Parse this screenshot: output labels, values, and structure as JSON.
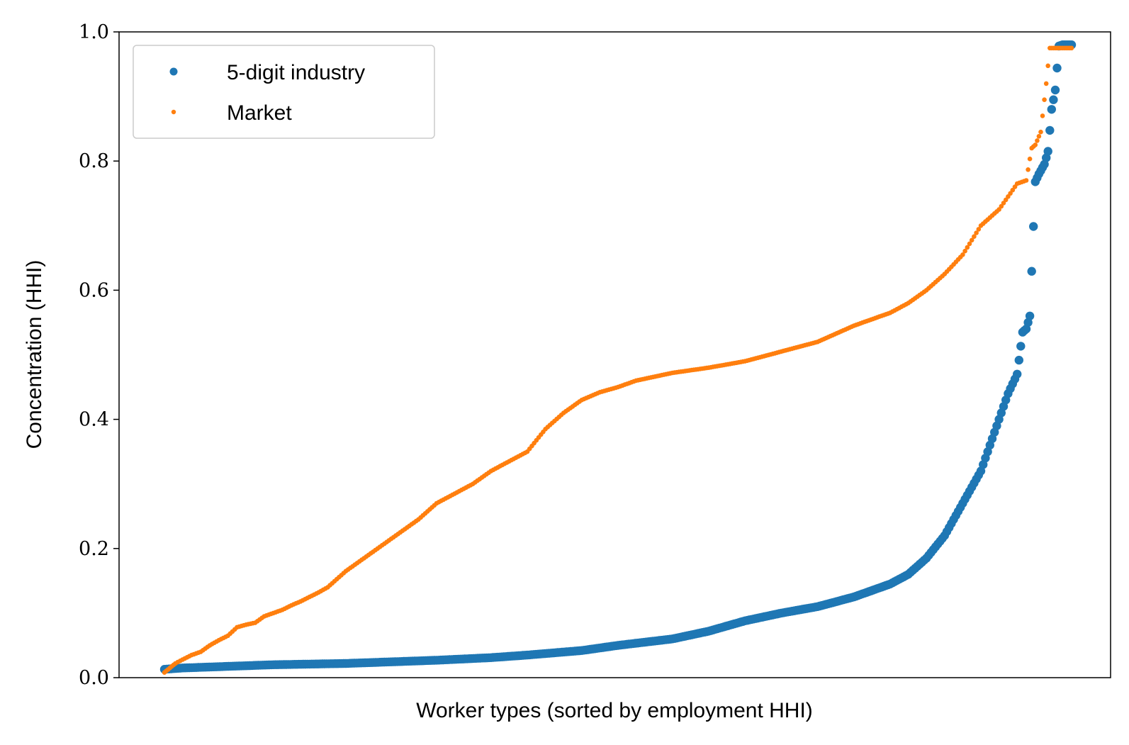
{
  "chart_data": {
    "type": "scatter",
    "xlabel": "Worker types (sorted by employment HHI)",
    "ylabel": "Concentration (HHI)",
    "ylim": [
      0,
      1
    ],
    "yticks": [
      "0.0",
      "0.2",
      "0.4",
      "0.6",
      "0.8",
      "1.0"
    ],
    "xticks_shown": false,
    "legend_position": "top-left",
    "x_range": [
      0,
      500
    ],
    "series": [
      {
        "name": "5-digit industry",
        "color": "#1f77b4",
        "marker": "large-dot",
        "x": [
          0,
          10,
          20,
          40,
          60,
          80,
          100,
          120,
          150,
          180,
          200,
          230,
          250,
          280,
          300,
          320,
          340,
          360,
          380,
          400,
          410,
          420,
          430,
          440,
          450,
          455,
          460,
          465,
          470,
          473,
          475,
          477,
          480,
          482,
          485,
          487,
          489,
          491,
          493,
          495,
          497,
          499,
          500
        ],
        "values": [
          0.013,
          0.015,
          0.016,
          0.018,
          0.02,
          0.021,
          0.022,
          0.024,
          0.027,
          0.031,
          0.035,
          0.042,
          0.05,
          0.06,
          0.072,
          0.088,
          0.1,
          0.11,
          0.125,
          0.145,
          0.16,
          0.185,
          0.22,
          0.27,
          0.32,
          0.36,
          0.4,
          0.44,
          0.47,
          0.535,
          0.54,
          0.56,
          0.768,
          0.78,
          0.795,
          0.815,
          0.88,
          0.91,
          0.978,
          0.98,
          0.98,
          0.98,
          0.98
        ]
      },
      {
        "name": "Market",
        "color": "#ff7f0e",
        "marker": "small-dot",
        "x": [
          0,
          3,
          6,
          10,
          15,
          20,
          25,
          30,
          35,
          40,
          45,
          50,
          55,
          60,
          65,
          70,
          75,
          80,
          85,
          90,
          100,
          110,
          120,
          130,
          140,
          150,
          160,
          170,
          180,
          190,
          200,
          210,
          220,
          230,
          240,
          250,
          260,
          280,
          300,
          320,
          340,
          360,
          380,
          400,
          410,
          420,
          430,
          440,
          450,
          460,
          470,
          475,
          478,
          480,
          483,
          486,
          488,
          490,
          492,
          495,
          498,
          500
        ],
        "values": [
          0.008,
          0.015,
          0.022,
          0.028,
          0.035,
          0.04,
          0.05,
          0.058,
          0.065,
          0.078,
          0.082,
          0.085,
          0.095,
          0.1,
          0.105,
          0.112,
          0.118,
          0.125,
          0.132,
          0.14,
          0.165,
          0.185,
          0.205,
          0.225,
          0.245,
          0.27,
          0.285,
          0.3,
          0.32,
          0.335,
          0.35,
          0.385,
          0.41,
          0.43,
          0.442,
          0.45,
          0.46,
          0.472,
          0.48,
          0.49,
          0.505,
          0.52,
          0.545,
          0.565,
          0.58,
          0.6,
          0.625,
          0.655,
          0.7,
          0.725,
          0.765,
          0.77,
          0.82,
          0.825,
          0.845,
          0.92,
          0.975,
          0.975,
          0.975,
          0.975,
          0.975,
          0.975
        ]
      }
    ]
  }
}
